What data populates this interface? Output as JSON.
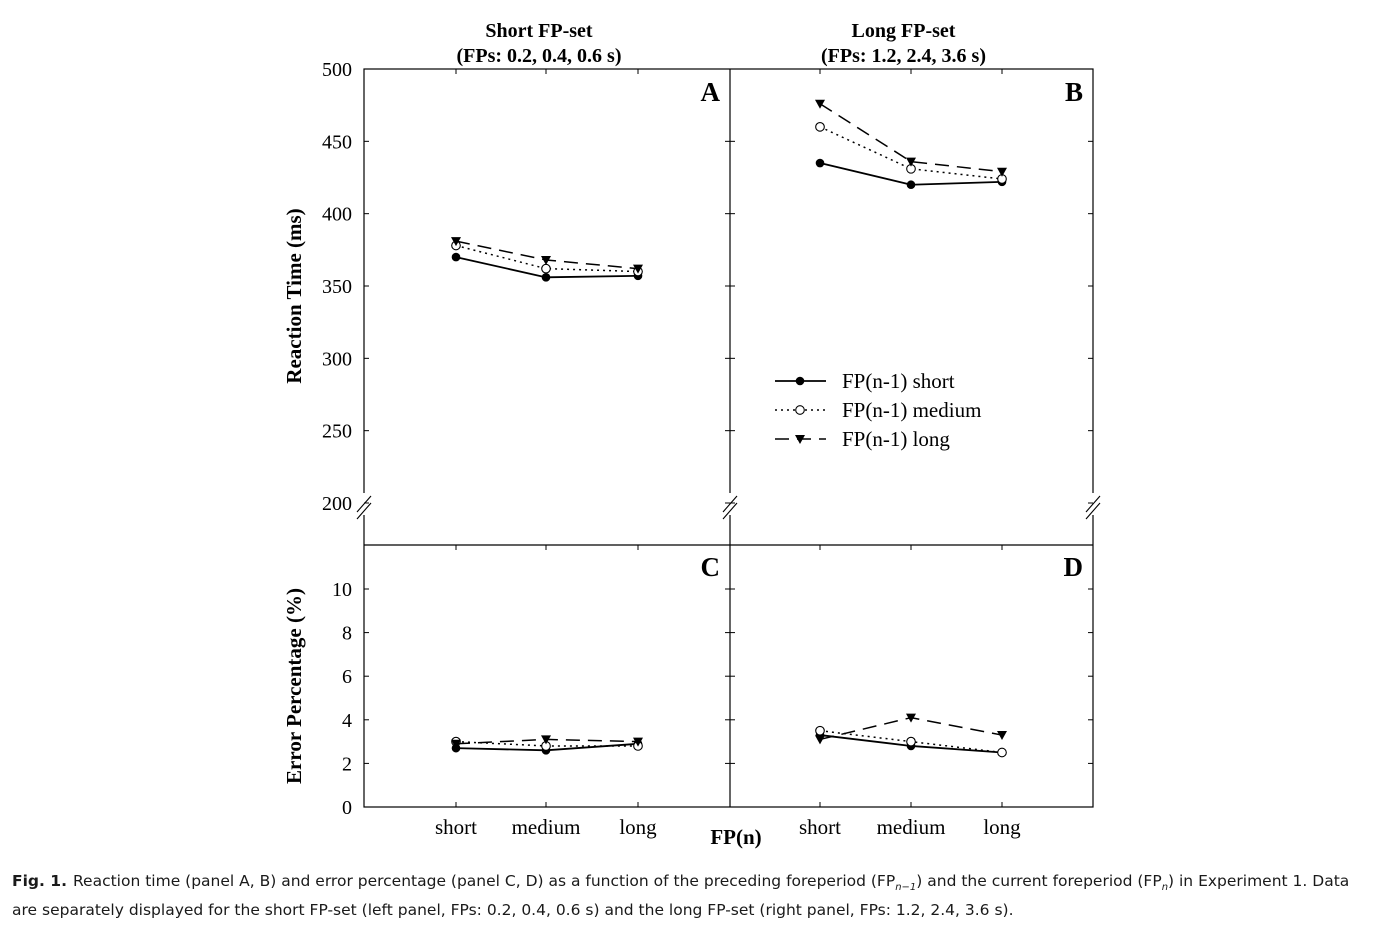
{
  "chart_data": [
    {
      "panel": "A",
      "type": "line",
      "title": [
        "Short FP-set",
        "(FPs: 0.2, 0.4, 0.6 s)"
      ],
      "ylabel": "Reaction Time (ms)",
      "ylim": [
        200,
        500
      ],
      "yticks": [
        "200",
        "250",
        "300",
        "350",
        "400",
        "450",
        "500"
      ],
      "axis_break": true,
      "categories": [
        "short",
        "medium",
        "long"
      ],
      "series": [
        {
          "name": "FP(n-1) short",
          "values": [
            370,
            356,
            357
          ]
        },
        {
          "name": "FP(n-1) medium",
          "values": [
            378,
            362,
            360
          ]
        },
        {
          "name": "FP(n-1) long",
          "values": [
            381,
            368,
            362
          ]
        }
      ]
    },
    {
      "panel": "B",
      "type": "line",
      "title": [
        "Long FP-set",
        "(FPs: 1.2, 2.4, 3.6 s)"
      ],
      "ylim": [
        200,
        500
      ],
      "axis_break": true,
      "categories": [
        "short",
        "medium",
        "long"
      ],
      "legend_position": "bottom-left",
      "series": [
        {
          "name": "FP(n-1) short",
          "values": [
            435,
            420,
            422
          ]
        },
        {
          "name": "FP(n-1) medium",
          "values": [
            460,
            431,
            424
          ]
        },
        {
          "name": "FP(n-1) long",
          "values": [
            476,
            436,
            429
          ]
        }
      ]
    },
    {
      "panel": "C",
      "type": "line",
      "ylabel": "Error Percentage (%)",
      "ylim": [
        0,
        12
      ],
      "yticks": [
        "0",
        "2",
        "4",
        "6",
        "8",
        "10"
      ],
      "xlabel": "FP(n)",
      "categories": [
        "short",
        "medium",
        "long"
      ],
      "series": [
        {
          "name": "FP(n-1) short",
          "values": [
            2.7,
            2.6,
            2.9
          ]
        },
        {
          "name": "FP(n-1) medium",
          "values": [
            3.0,
            2.8,
            2.8
          ]
        },
        {
          "name": "FP(n-1) long",
          "values": [
            2.9,
            3.1,
            3.0
          ]
        }
      ]
    },
    {
      "panel": "D",
      "type": "line",
      "ylim": [
        0,
        12
      ],
      "categories": [
        "short",
        "medium",
        "long"
      ],
      "series": [
        {
          "name": "FP(n-1) short",
          "values": [
            3.3,
            2.8,
            2.5
          ]
        },
        {
          "name": "FP(n-1) medium",
          "values": [
            3.5,
            3.0,
            2.5
          ]
        },
        {
          "name": "FP(n-1) long",
          "values": [
            3.1,
            4.1,
            3.3
          ]
        }
      ]
    }
  ],
  "xlabel": "FP(n)",
  "legend": [
    "FP(n-1) short",
    "FP(n-1) medium",
    "FP(n-1) long"
  ],
  "caption": {
    "label": "Fig. 1.",
    "part1": "Reaction time (panel A, B) and error percentage (panel C, D) as a function of the preceding foreperiod (FP",
    "sub1": "n−1",
    "part2": ") and the current foreperiod (FP",
    "sub2": "n",
    "part3": ") in Experiment 1. Data are separately displayed for the short FP-set (left panel, FPs: 0.2, 0.4, 0.6 s) and the long FP-set (right panel, FPs: 1.2, 2.4, 3.6 s)."
  }
}
